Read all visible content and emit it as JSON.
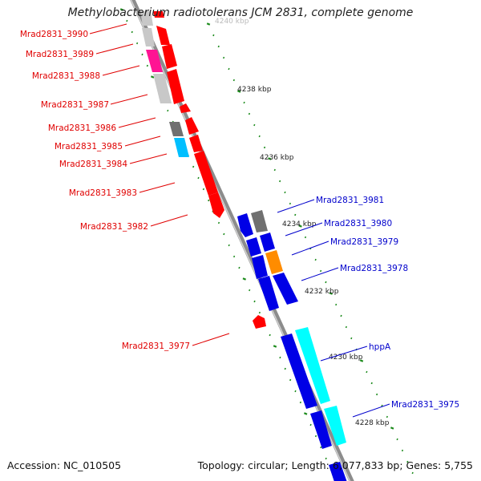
{
  "title": "Methylobacterium radiotolerans JCM 2831, complete genome",
  "footer": {
    "accession": "Accession: NC_010505",
    "topology": "Topology: circular; Length: 6,077,833 bp; Genes: 5,755"
  },
  "colors": {
    "backbone": "#8c8c8c",
    "forward_label": "#e00000",
    "reverse_label": "#0000cc",
    "tick": "#1a8a1a",
    "red": "#ff0000",
    "magenta": "#ff1493",
    "gray": "#c8c8c8",
    "darkgray": "#707070",
    "skyblue": "#00bfff",
    "blue": "#0000e6",
    "orange": "#ff8c00",
    "cyan": "#00ffff"
  },
  "scale_labels": [
    {
      "id": "4240",
      "text": "4240 kbp"
    },
    {
      "id": "4238",
      "text": "4238 kbp"
    },
    {
      "id": "4236",
      "text": "4236 kbp"
    },
    {
      "id": "4234",
      "text": "4234 kbp"
    },
    {
      "id": "4232",
      "text": "4232 kbp"
    },
    {
      "id": "4230",
      "text": "4230 kbp"
    },
    {
      "id": "4228",
      "text": "4228 kbp"
    }
  ],
  "genes": [
    {
      "name": "Mrad2831_3990",
      "strand": "forward"
    },
    {
      "name": "Mrad2831_3989",
      "strand": "forward"
    },
    {
      "name": "Mrad2831_3988",
      "strand": "forward"
    },
    {
      "name": "Mrad2831_3987",
      "strand": "forward"
    },
    {
      "name": "Mrad2831_3986",
      "strand": "forward"
    },
    {
      "name": "Mrad2831_3985",
      "strand": "forward"
    },
    {
      "name": "Mrad2831_3984",
      "strand": "forward"
    },
    {
      "name": "Mrad2831_3983",
      "strand": "forward"
    },
    {
      "name": "Mrad2831_3982",
      "strand": "forward"
    },
    {
      "name": "Mrad2831_3977",
      "strand": "forward"
    },
    {
      "name": "Mrad2831_3981",
      "strand": "reverse"
    },
    {
      "name": "Mrad2831_3980",
      "strand": "reverse"
    },
    {
      "name": "Mrad2831_3979",
      "strand": "reverse"
    },
    {
      "name": "Mrad2831_3978",
      "strand": "reverse"
    },
    {
      "name": "hppA",
      "strand": "reverse"
    },
    {
      "name": "Mrad2831_3975",
      "strand": "reverse"
    }
  ]
}
